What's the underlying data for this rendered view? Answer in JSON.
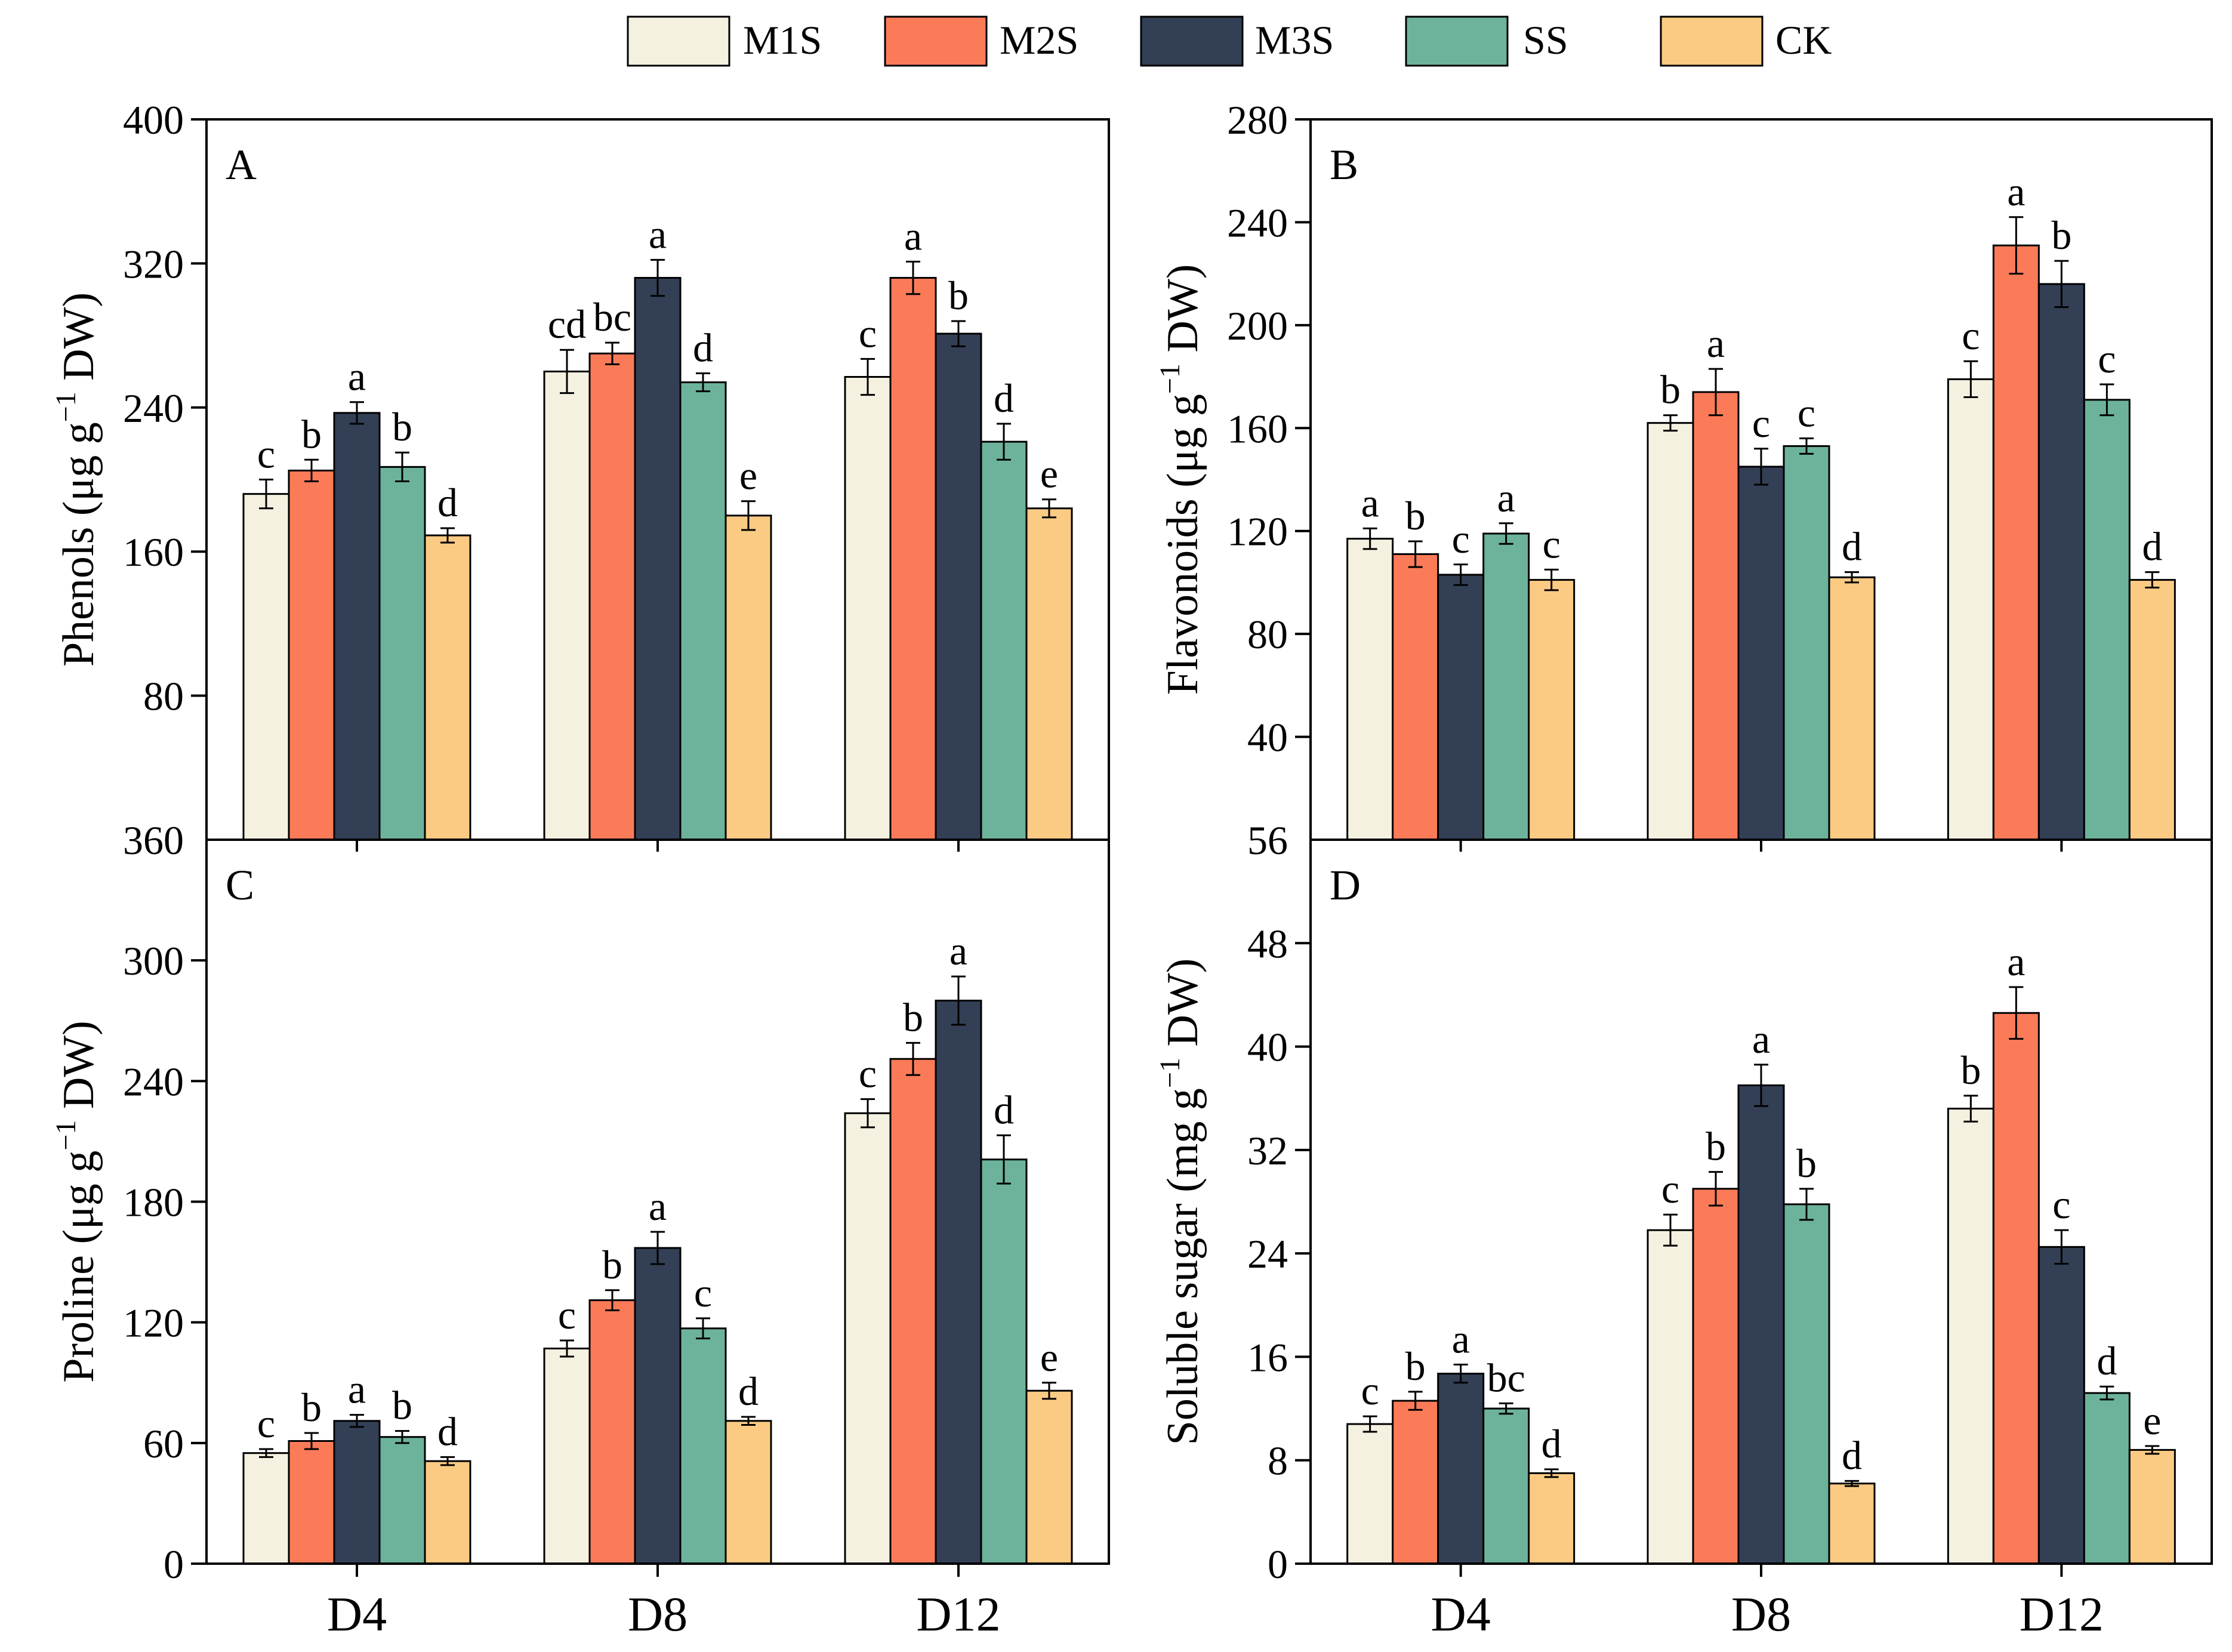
{
  "legend": {
    "entries": [
      {
        "name": "M1S",
        "color": "#F4F1E1"
      },
      {
        "name": "M2S",
        "color": "#FB7B59"
      },
      {
        "name": "M3S",
        "color": "#333F55"
      },
      {
        "name": "SS",
        "color": "#6DB39C"
      },
      {
        "name": "CK",
        "color": "#FBCB84"
      }
    ]
  },
  "chart_data": [
    {
      "type": "bar",
      "panel": "A",
      "ylabel_main": "Phenols (μg g",
      "ylabel_sup": "−1",
      "ylabel_end": " DW)",
      "categories": [
        "D4",
        "D8",
        "D12"
      ],
      "ylim": [
        0,
        400
      ],
      "yticks": [
        80,
        160,
        240,
        320,
        400
      ],
      "ytick_labels": [
        "80",
        "160",
        "240",
        "320",
        "400"
      ],
      "bottom_label": "360",
      "series": [
        {
          "name": "M1S",
          "values": [
            192,
            260,
            257
          ],
          "errors": [
            8,
            12,
            10
          ],
          "letters": [
            "c",
            "cd",
            "c"
          ]
        },
        {
          "name": "M2S",
          "values": [
            205,
            270,
            312
          ],
          "errors": [
            6,
            6,
            9
          ],
          "letters": [
            "b",
            "bc",
            "a"
          ]
        },
        {
          "name": "M3S",
          "values": [
            237,
            312,
            281
          ],
          "errors": [
            6,
            10,
            7
          ],
          "letters": [
            "a",
            "a",
            "b"
          ]
        },
        {
          "name": "SS",
          "values": [
            207,
            254,
            221
          ],
          "errors": [
            8,
            5,
            10
          ],
          "letters": [
            "b",
            "d",
            "d"
          ]
        },
        {
          "name": "CK",
          "values": [
            169,
            180,
            184
          ],
          "errors": [
            4,
            8,
            5
          ],
          "letters": [
            "d",
            "e",
            "e"
          ]
        }
      ]
    },
    {
      "type": "bar",
      "panel": "B",
      "ylabel_main": "Flavonoids (μg g",
      "ylabel_sup": "−1",
      "ylabel_end": " DW)",
      "categories": [
        "D4",
        "D8",
        "D12"
      ],
      "ylim": [
        0,
        280
      ],
      "yticks": [
        40,
        80,
        120,
        160,
        200,
        240,
        280
      ],
      "ytick_labels": [
        "40",
        "80",
        "120",
        "160",
        "200",
        "240",
        "280"
      ],
      "bottom_label": "56",
      "series": [
        {
          "name": "M1S",
          "values": [
            117,
            162,
            179
          ],
          "errors": [
            4,
            3,
            7
          ],
          "letters": [
            "a",
            "b",
            "c"
          ]
        },
        {
          "name": "M2S",
          "values": [
            111,
            174,
            231
          ],
          "errors": [
            5,
            9,
            11
          ],
          "letters": [
            "b",
            "a",
            "a"
          ]
        },
        {
          "name": "M3S",
          "values": [
            103,
            145,
            216
          ],
          "errors": [
            4,
            7,
            9
          ],
          "letters": [
            "c",
            "c",
            "b"
          ]
        },
        {
          "name": "SS",
          "values": [
            119,
            153,
            171
          ],
          "errors": [
            4,
            3,
            6
          ],
          "letters": [
            "a",
            "c",
            "c"
          ]
        },
        {
          "name": "CK",
          "values": [
            101,
            102,
            101
          ],
          "errors": [
            4,
            2,
            3
          ],
          "letters": [
            "c",
            "d",
            "d"
          ]
        }
      ]
    },
    {
      "type": "bar",
      "panel": "C",
      "ylabel_main": "Proline (μg g",
      "ylabel_sup": "−1",
      "ylabel_end": " DW)",
      "categories": [
        "D4",
        "D8",
        "D12"
      ],
      "ylim": [
        0,
        360
      ],
      "yticks": [
        0,
        60,
        120,
        180,
        240,
        300
      ],
      "ytick_labels": [
        "0",
        "60",
        "120",
        "180",
        "240",
        "300"
      ],
      "series": [
        {
          "name": "M1S",
          "values": [
            55,
            107,
            224
          ],
          "errors": [
            2,
            4,
            7
          ],
          "letters": [
            "c",
            "c",
            "c"
          ]
        },
        {
          "name": "M2S",
          "values": [
            61,
            131,
            251
          ],
          "errors": [
            4,
            5,
            8
          ],
          "letters": [
            "b",
            "b",
            "b"
          ]
        },
        {
          "name": "M3S",
          "values": [
            71,
            157,
            280
          ],
          "errors": [
            3,
            8,
            12
          ],
          "letters": [
            "a",
            "a",
            "a"
          ]
        },
        {
          "name": "SS",
          "values": [
            63,
            117,
            201
          ],
          "errors": [
            3,
            5,
            12
          ],
          "letters": [
            "b",
            "c",
            "d"
          ]
        },
        {
          "name": "CK",
          "values": [
            51,
            71,
            86
          ],
          "errors": [
            2,
            2,
            4
          ],
          "letters": [
            "d",
            "d",
            "e"
          ]
        }
      ]
    },
    {
      "type": "bar",
      "panel": "D",
      "ylabel_main": "Soluble sugar (mg g",
      "ylabel_sup": "−1",
      "ylabel_end": " DW)",
      "categories": [
        "D4",
        "D8",
        "D12"
      ],
      "ylim": [
        0,
        56
      ],
      "yticks": [
        0,
        8,
        16,
        24,
        32,
        40,
        48
      ],
      "ytick_labels": [
        "0",
        "8",
        "16",
        "24",
        "32",
        "40",
        "48"
      ],
      "series": [
        {
          "name": "M1S",
          "values": [
            10.8,
            25.8,
            35.2
          ],
          "errors": [
            0.6,
            1.2,
            1.0
          ],
          "letters": [
            "c",
            "c",
            "b"
          ]
        },
        {
          "name": "M2S",
          "values": [
            12.6,
            29.0,
            42.6
          ],
          "errors": [
            0.7,
            1.3,
            2.0
          ],
          "letters": [
            "b",
            "b",
            "a"
          ]
        },
        {
          "name": "M3S",
          "values": [
            14.7,
            37.0,
            24.5
          ],
          "errors": [
            0.7,
            1.6,
            1.3
          ],
          "letters": [
            "a",
            "a",
            "c"
          ]
        },
        {
          "name": "SS",
          "values": [
            12.0,
            27.8,
            13.2
          ],
          "errors": [
            0.4,
            1.2,
            0.5
          ],
          "letters": [
            "bc",
            "b",
            "d"
          ]
        },
        {
          "name": "CK",
          "values": [
            7.0,
            6.2,
            8.8
          ],
          "errors": [
            0.3,
            0.2,
            0.3
          ],
          "letters": [
            "d",
            "d",
            "e"
          ]
        }
      ]
    }
  ]
}
